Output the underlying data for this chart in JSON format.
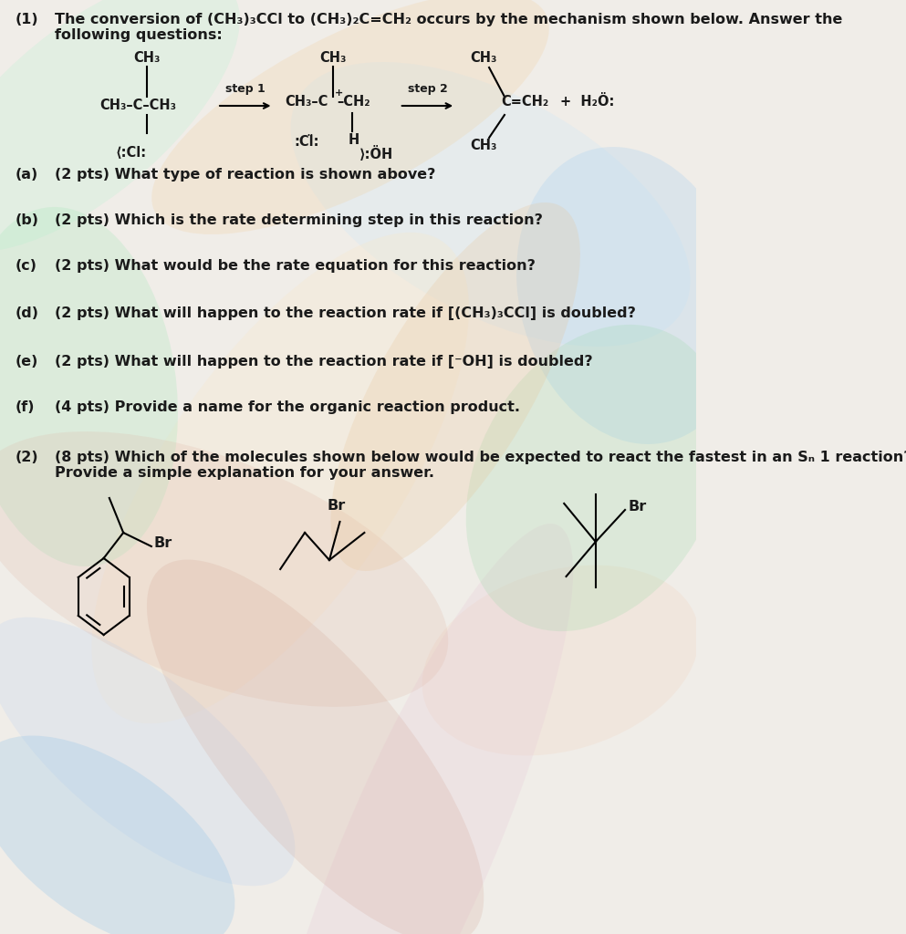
{
  "background_color": "#f0ede8",
  "text_color": "#1a1a1a",
  "font_size_main": 11.5,
  "font_size_chem": 10.5,
  "font_size_step": 9,
  "swirl_colors": [
    "#c8f0d8",
    "#d0e8f8",
    "#f8e8c8",
    "#f0d8c8",
    "#c8d8f0",
    "#e8c8d8",
    "#b0e8c0",
    "#a8d0f0",
    "#f0d0a0",
    "#e0b8a8",
    "#90d8a0",
    "#88c0e8",
    "#e8c090",
    "#d0a090"
  ],
  "swirl_params": [
    [
      120,
      900,
      500,
      200,
      30,
      0.35
    ],
    [
      700,
      800,
      600,
      250,
      -20,
      0.3
    ],
    [
      400,
      500,
      700,
      300,
      45,
      0.28
    ],
    [
      800,
      300,
      400,
      200,
      10,
      0.32
    ],
    [
      200,
      200,
      500,
      180,
      -30,
      0.3
    ],
    [
      600,
      100,
      800,
      200,
      60,
      0.25
    ],
    [
      100,
      600,
      300,
      400,
      15,
      0.3
    ],
    [
      900,
      700,
      350,
      300,
      -45,
      0.28
    ],
    [
      500,
      900,
      600,
      180,
      20,
      0.25
    ],
    [
      300,
      400,
      700,
      250,
      -15,
      0.22
    ],
    [
      850,
      500,
      400,
      300,
      35,
      0.2
    ],
    [
      150,
      100,
      400,
      180,
      -25,
      0.25
    ],
    [
      650,
      600,
      500,
      200,
      50,
      0.22
    ],
    [
      450,
      200,
      600,
      220,
      -40,
      0.2
    ]
  ]
}
